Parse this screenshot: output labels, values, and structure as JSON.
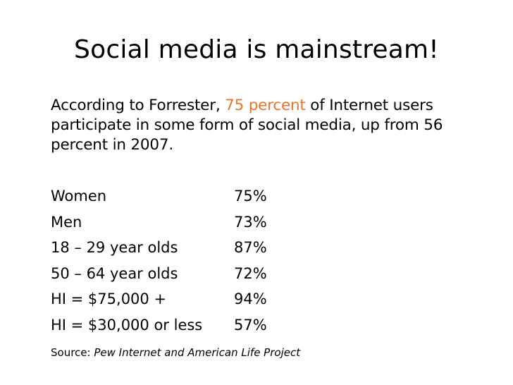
{
  "slide": {
    "title": "Social media is mainstream!",
    "intro": {
      "before": "According to Forrester, ",
      "highlight": "75 percent",
      "after": " of Internet users participate in some form of social media, up from 56 percent in 2007."
    },
    "stats": [
      {
        "label": "Women",
        "value": "75%"
      },
      {
        "label": "Men",
        "value": "73%"
      },
      {
        "label": "18 – 29 year olds",
        "value": "87%"
      },
      {
        "label": "50 – 64 year olds",
        "value": "72%"
      },
      {
        "label": "HI = $75,000 +",
        "value": "94%"
      },
      {
        "label": "HI = $30,000 or less",
        "value": "57%"
      }
    ],
    "source": {
      "label": "Source: ",
      "title": "Pew Internet and American Life Project"
    }
  },
  "colors": {
    "background": "#ffffff",
    "text": "#000000",
    "highlight": "#e8732a"
  }
}
